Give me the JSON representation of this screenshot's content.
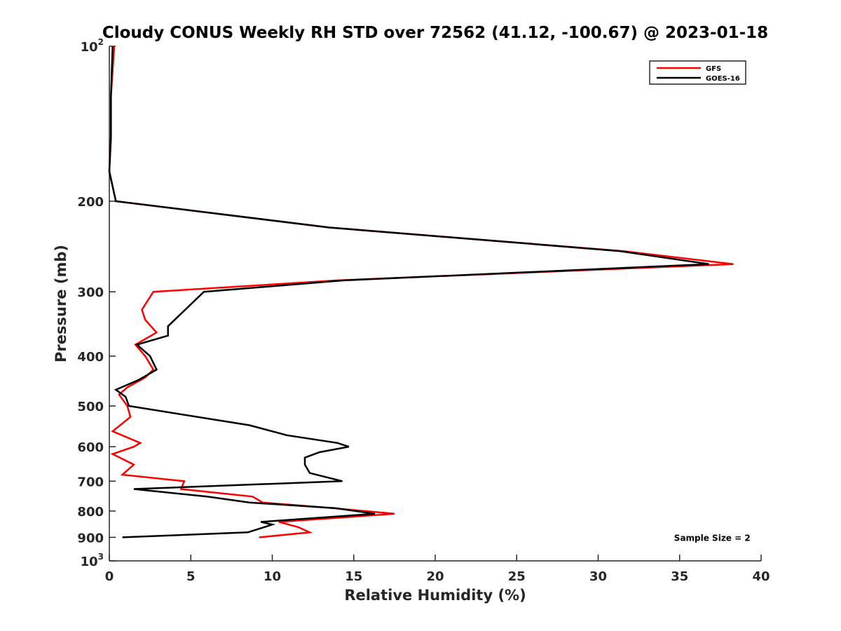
{
  "chart_data": {
    "type": "line",
    "title": "Cloudy CONUS Weekly RH STD over 72562 (41.12, -100.67) @ 2023-01-18",
    "xlabel": "Relative Humidity (%)",
    "ylabel": "Pressure (mb)",
    "xlim": [
      0,
      40
    ],
    "ylim": [
      100,
      1000
    ],
    "y_scale": "log",
    "y_reversed": true,
    "x_ticks": [
      0,
      5,
      10,
      15,
      20,
      25,
      30,
      35,
      40
    ],
    "x_tick_labels": [
      "0",
      "5",
      "10",
      "15",
      "20",
      "25",
      "30",
      "35",
      "40"
    ],
    "y_ticks": [
      100,
      200,
      300,
      400,
      500,
      600,
      700,
      800,
      900,
      1000
    ],
    "y_tick_labels": [
      {
        "base": "10",
        "sup": "2"
      },
      {
        "base": "200"
      },
      {
        "base": "300"
      },
      {
        "base": "400"
      },
      {
        "base": "500"
      },
      {
        "base": "600"
      },
      {
        "base": "700"
      },
      {
        "base": "800"
      },
      {
        "base": "900"
      },
      {
        "base": "10",
        "sup": "3"
      }
    ],
    "grid": false,
    "legend_position": "top-right",
    "series": [
      {
        "name": "GFS",
        "color": "#ff0000",
        "points": [
          [
            0.3,
            100
          ],
          [
            0.1,
            125
          ],
          [
            0.1,
            150
          ],
          [
            0.0,
            175
          ],
          [
            0.4,
            200
          ],
          [
            13.5,
            225
          ],
          [
            31.5,
            250
          ],
          [
            38.3,
            265
          ],
          [
            14.0,
            285
          ],
          [
            2.7,
            300
          ],
          [
            2.0,
            325
          ],
          [
            2.2,
            340
          ],
          [
            2.9,
            360
          ],
          [
            1.6,
            380
          ],
          [
            2.2,
            400
          ],
          [
            2.7,
            425
          ],
          [
            2.2,
            440
          ],
          [
            1.1,
            460
          ],
          [
            0.6,
            475
          ],
          [
            1.1,
            500
          ],
          [
            1.3,
            525
          ],
          [
            0.2,
            560
          ],
          [
            1.9,
            590
          ],
          [
            1.5,
            600
          ],
          [
            0.2,
            620
          ],
          [
            1.5,
            650
          ],
          [
            0.8,
            680
          ],
          [
            4.6,
            700
          ],
          [
            4.4,
            725
          ],
          [
            8.8,
            750
          ],
          [
            9.4,
            770
          ],
          [
            13.8,
            790
          ],
          [
            17.5,
            810
          ],
          [
            10.4,
            840
          ],
          [
            11.6,
            860
          ],
          [
            12.3,
            880
          ],
          [
            9.2,
            900
          ]
        ]
      },
      {
        "name": "GOES-16",
        "color": "#000000",
        "points": [
          [
            0.2,
            100
          ],
          [
            0.1,
            125
          ],
          [
            0.1,
            150
          ],
          [
            0.0,
            175
          ],
          [
            0.4,
            200
          ],
          [
            13.5,
            225
          ],
          [
            31.3,
            250
          ],
          [
            36.8,
            265
          ],
          [
            14.4,
            285
          ],
          [
            5.8,
            300
          ],
          [
            3.6,
            350
          ],
          [
            3.6,
            365
          ],
          [
            1.7,
            380
          ],
          [
            2.5,
            400
          ],
          [
            2.9,
            425
          ],
          [
            1.8,
            445
          ],
          [
            0.4,
            465
          ],
          [
            1.0,
            480
          ],
          [
            1.2,
            500
          ],
          [
            8.6,
            545
          ],
          [
            10.9,
            570
          ],
          [
            14.0,
            590
          ],
          [
            14.7,
            600
          ],
          [
            12.9,
            615
          ],
          [
            12.0,
            630
          ],
          [
            12.0,
            650
          ],
          [
            12.3,
            675
          ],
          [
            14.3,
            700
          ],
          [
            1.5,
            725
          ],
          [
            6.0,
            750
          ],
          [
            8.6,
            770
          ],
          [
            13.9,
            790
          ],
          [
            16.3,
            810
          ],
          [
            9.3,
            840
          ],
          [
            10.0,
            850
          ],
          [
            8.5,
            880
          ],
          [
            0.8,
            900
          ]
        ]
      }
    ],
    "annotations": [
      {
        "text": "Sample Size = 2",
        "x": 37.0,
        "y": 900
      }
    ]
  }
}
